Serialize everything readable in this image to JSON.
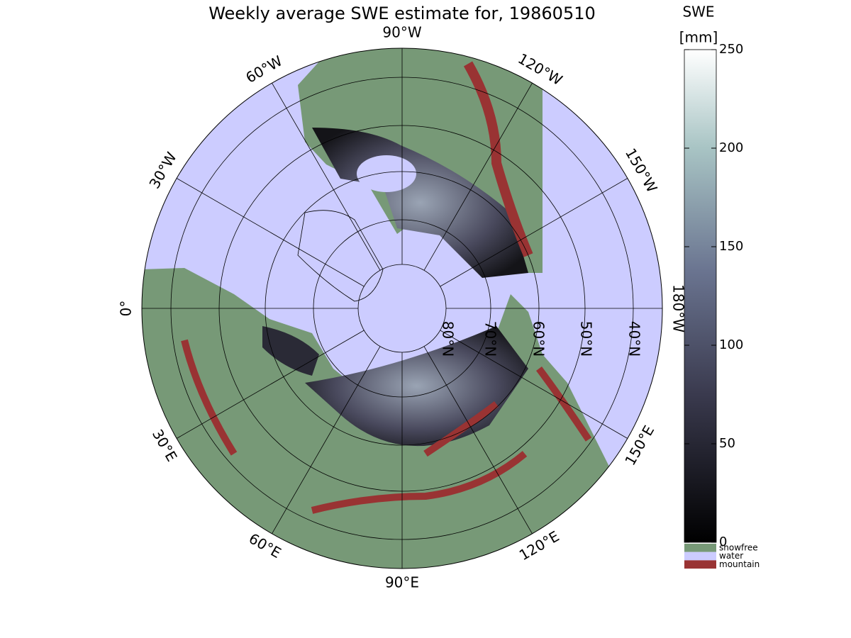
{
  "title": "Weekly average SWE estimate for, 19860510",
  "longitude_labels": [
    "0°",
    "30°E",
    "60°E",
    "90°E",
    "120°E",
    "150°E",
    "180°W",
    "150°W",
    "120°W",
    "90°W",
    "60°W",
    "30°W"
  ],
  "latitude_labels": [
    "80°N",
    "70°N",
    "60°N",
    "50°N",
    "40°N"
  ],
  "colorbar": {
    "title": "SWE",
    "unit": "[mm]",
    "lim": [
      0,
      250
    ],
    "ticks": [
      0,
      50,
      100,
      150,
      200,
      250
    ]
  },
  "legend": [
    "snowfree",
    "water",
    "mountain"
  ]
}
